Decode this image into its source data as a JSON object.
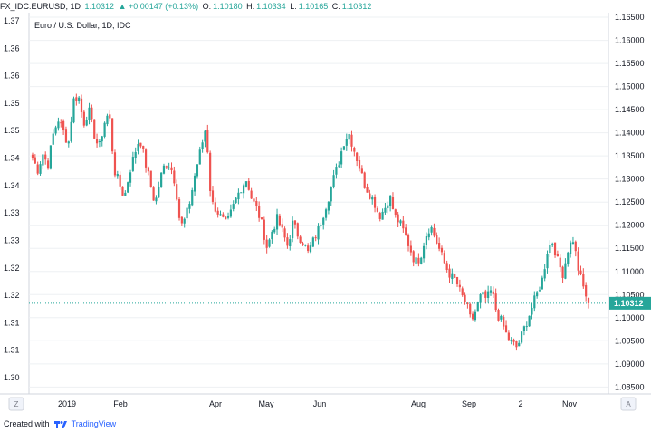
{
  "header": {
    "symbol": "FX_IDC:EURUSD, 1D",
    "last": "1.10312",
    "change": "▲ +0.00147 (+0.13%)",
    "o_label": "O:",
    "o_val": "1.10180",
    "h_label": "H:",
    "h_val": "1.10334",
    "l_label": "L:",
    "l_val": "1.10165",
    "c_label": "C:",
    "c_val": "1.10312"
  },
  "footer": {
    "created_with": "Created with",
    "brand": "TradingView"
  },
  "buttons": {
    "z": "Z",
    "a": "A"
  },
  "colors": {
    "up": "#26a69a",
    "down": "#ef5350",
    "price_line": "#26a69a",
    "grid": "#eef0f3",
    "text": "#131722"
  },
  "chart_data": {
    "type": "candlestick",
    "title": "Euro / U.S. Dollar, 1D, IDC",
    "current_price": 1.10312,
    "right_axis": {
      "ticks": [
        "1.16500",
        "1.16000",
        "1.15500",
        "1.15000",
        "1.14500",
        "1.14000",
        "1.13500",
        "1.13000",
        "1.12500",
        "1.12000",
        "1.11500",
        "1.11000",
        "1.10500",
        "1.10000",
        "1.09500",
        "1.09000",
        "1.08500"
      ],
      "range": [
        1.0835,
        1.1656
      ]
    },
    "left_axis": {
      "ticks": [
        "1.37",
        "1.36",
        "1.36",
        "1.35",
        "1.35",
        "1.34",
        "1.34",
        "1.33",
        "1.33",
        "1.32",
        "1.32",
        "1.31",
        "1.31",
        "1.30"
      ]
    },
    "x_axis": {
      "labels": [
        "2019",
        "Feb",
        "Apr",
        "May",
        "Jun",
        "Aug",
        "Sep",
        "2",
        "Nov"
      ]
    },
    "series_close_approx": [
      1.1345,
      1.132,
      1.1355,
      1.133,
      1.1395,
      1.143,
      1.1405,
      1.1375,
      1.147,
      1.148,
      1.142,
      1.145,
      1.14,
      1.1365,
      1.142,
      1.1445,
      1.132,
      1.129,
      1.126,
      1.1315,
      1.1355,
      1.139,
      1.134,
      1.1295,
      1.1245,
      1.13,
      1.1335,
      1.133,
      1.129,
      1.1195,
      1.1215,
      1.126,
      1.132,
      1.1365,
      1.1415,
      1.125,
      1.1235,
      1.1215,
      1.12,
      1.123,
      1.126,
      1.1285,
      1.13,
      1.1255,
      1.1235,
      1.12,
      1.115,
      1.119,
      1.1215,
      1.1185,
      1.1155,
      1.1205,
      1.118,
      1.1165,
      1.114,
      1.1165,
      1.119,
      1.1225,
      1.126,
      1.13,
      1.1335,
      1.138,
      1.14,
      1.1365,
      1.133,
      1.129,
      1.127,
      1.125,
      1.122,
      1.1235,
      1.1265,
      1.122,
      1.1205,
      1.118,
      1.115,
      1.112,
      1.113,
      1.1175,
      1.12,
      1.117,
      1.114,
      1.111,
      1.109,
      1.108,
      1.105,
      1.103,
      1.099,
      1.102,
      1.105,
      1.104,
      1.106,
      1.101,
      1.099,
      1.096,
      1.0945,
      1.0935,
      1.0965,
      1.0995,
      1.1025,
      1.1055,
      1.1085,
      1.115,
      1.1165,
      1.112,
      1.1095,
      1.115,
      1.117,
      1.1105,
      1.1065,
      1.1031
    ]
  }
}
